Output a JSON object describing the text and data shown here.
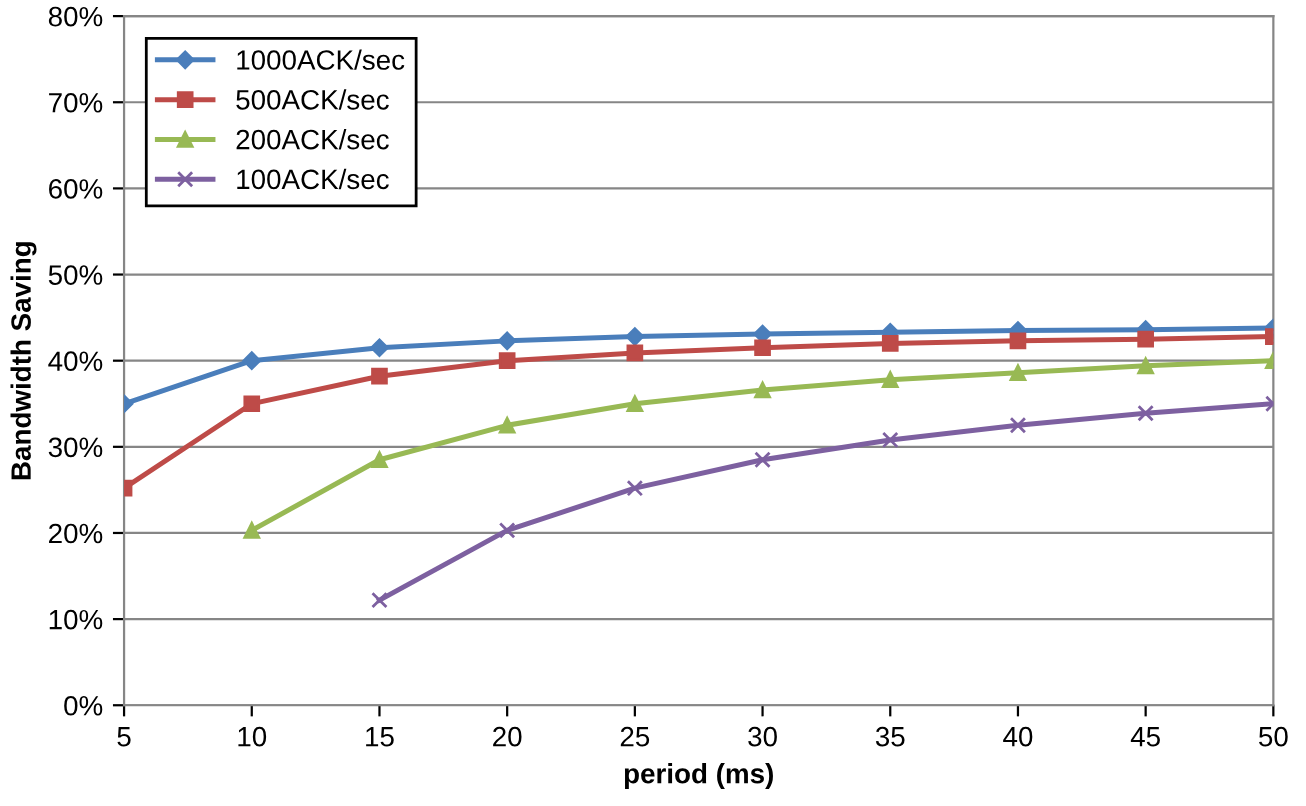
{
  "chart_data": {
    "type": "line",
    "xlabel": "period (ms)",
    "ylabel": "Bandwidth Saving",
    "x": [
      5,
      10,
      15,
      20,
      25,
      30,
      35,
      40,
      45,
      50
    ],
    "series": [
      {
        "name": "1000ACK/sec",
        "color": "#4a7ebb",
        "marker": "diamond",
        "values": [
          35,
          40,
          41.5,
          42.3,
          42.8,
          43.1,
          43.3,
          43.5,
          43.6,
          43.8
        ]
      },
      {
        "name": "500ACK/sec",
        "color": "#be4b48",
        "marker": "square",
        "values": [
          25.2,
          35,
          38.2,
          40,
          40.9,
          41.5,
          42,
          42.3,
          42.5,
          42.8
        ]
      },
      {
        "name": "200ACK/sec",
        "color": "#98b954",
        "marker": "triangle",
        "values": [
          null,
          20.3,
          28.5,
          32.5,
          35,
          36.6,
          37.8,
          38.6,
          39.4,
          40
        ]
      },
      {
        "name": "100ACK/sec",
        "color": "#7d60a0",
        "marker": "cross",
        "values": [
          null,
          null,
          12.2,
          20.3,
          25.2,
          28.5,
          30.8,
          32.5,
          33.9,
          35
        ]
      }
    ],
    "xlim": [
      5,
      50
    ],
    "xticks": [
      5,
      10,
      15,
      20,
      25,
      30,
      35,
      40,
      45,
      50
    ],
    "ylim": [
      0,
      80
    ],
    "yticks": [
      {
        "value": 0,
        "label": "0%"
      },
      {
        "value": 10,
        "label": "10%"
      },
      {
        "value": 20,
        "label": "20%"
      },
      {
        "value": 30,
        "label": "30%"
      },
      {
        "value": 40,
        "label": "40%"
      },
      {
        "value": 50,
        "label": "50%"
      },
      {
        "value": 60,
        "label": "60%"
      },
      {
        "value": 70,
        "label": "70%"
      },
      {
        "value": 80,
        "label": "80%"
      }
    ],
    "grid": "y",
    "legend": "top left",
    "line_style": "solid"
  }
}
